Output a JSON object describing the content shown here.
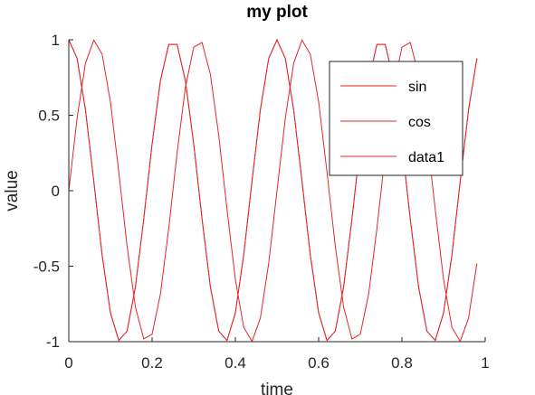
{
  "chart_data": {
    "type": "line",
    "title": "my plot",
    "xlabel": "time",
    "ylabel": "value",
    "xlim": [
      0,
      1
    ],
    "ylim": [
      -1,
      1
    ],
    "xticks": [
      "0",
      "0.2",
      "0.4",
      "0.6",
      "0.8",
      "1"
    ],
    "yticks": [
      "1",
      "0.5",
      "0",
      "-0.5",
      "-1"
    ],
    "xtick_values": [
      0,
      0.2,
      0.4,
      0.6,
      0.8,
      1
    ],
    "ytick_values": [
      1,
      0.5,
      0,
      -0.5,
      -1
    ],
    "grid": false,
    "legend_position": "top-right",
    "x": [
      0,
      0.02,
      0.04,
      0.06,
      0.08,
      0.1,
      0.12,
      0.14,
      0.16,
      0.18,
      0.2,
      0.22,
      0.24,
      0.26,
      0.28,
      0.3,
      0.32,
      0.34,
      0.36,
      0.38,
      0.4,
      0.42,
      0.44,
      0.46,
      0.48,
      0.5,
      0.52,
      0.54,
      0.56,
      0.58,
      0.6,
      0.62,
      0.64,
      0.66,
      0.68,
      0.7,
      0.72,
      0.74,
      0.76,
      0.78,
      0.8,
      0.82,
      0.84,
      0.86,
      0.88,
      0.9,
      0.92,
      0.94,
      0.96,
      0.98
    ],
    "series": [
      {
        "name": "sin",
        "color": "#e32727",
        "values": [
          0,
          0.482,
          0.844,
          0.998,
          0.905,
          0.588,
          0.125,
          -0.368,
          -0.771,
          -0.982,
          -0.951,
          -0.685,
          -0.249,
          0.249,
          0.685,
          0.951,
          0.982,
          0.771,
          0.368,
          -0.125,
          -0.588,
          -0.905,
          -0.998,
          -0.844,
          -0.482,
          0,
          0.482,
          0.844,
          0.998,
          0.905,
          0.588,
          0.125,
          -0.368,
          -0.771,
          -0.982,
          -0.951,
          -0.685,
          -0.249,
          0.249,
          0.685,
          0.951,
          0.982,
          0.771,
          0.368,
          -0.125,
          -0.588,
          -0.905,
          -0.998,
          -0.844,
          -0.482
        ]
      },
      {
        "name": "cos",
        "color": "#e32727",
        "values": [
          1,
          0.876,
          0.536,
          0.063,
          -0.426,
          -0.809,
          -0.992,
          -0.93,
          -0.637,
          -0.187,
          0.309,
          0.729,
          0.969,
          0.969,
          0.729,
          0.309,
          -0.187,
          -0.637,
          -0.93,
          -0.992,
          -0.809,
          -0.426,
          0.063,
          0.536,
          0.876,
          1,
          0.876,
          0.536,
          0.063,
          -0.426,
          -0.809,
          -0.992,
          -0.93,
          -0.637,
          -0.187,
          0.309,
          0.729,
          0.969,
          0.969,
          0.729,
          0.309,
          -0.187,
          -0.637,
          -0.93,
          -0.992,
          -0.809,
          -0.426,
          0.063,
          0.536,
          0.876
        ]
      },
      {
        "name": "data1",
        "color": "#e32727",
        "values": [
          1,
          0.876,
          0.536,
          0.063,
          -0.426,
          -0.809,
          -0.992,
          -0.93,
          -0.637,
          -0.187,
          0.309,
          0.729,
          0.969,
          0.969,
          0.729,
          0.309,
          -0.187,
          -0.637,
          -0.93,
          -0.992,
          -0.809,
          -0.426,
          0.063,
          0.536,
          0.876,
          1,
          0.876,
          0.536,
          0.063,
          -0.426,
          -0.809,
          -0.992,
          -0.93,
          -0.637,
          -0.187,
          0.309,
          0.729,
          0.969,
          0.969,
          0.729,
          0.309,
          -0.187,
          -0.637,
          -0.93,
          -0.992,
          -0.809,
          -0.426,
          0.063,
          0.536,
          0.876
        ]
      }
    ]
  }
}
